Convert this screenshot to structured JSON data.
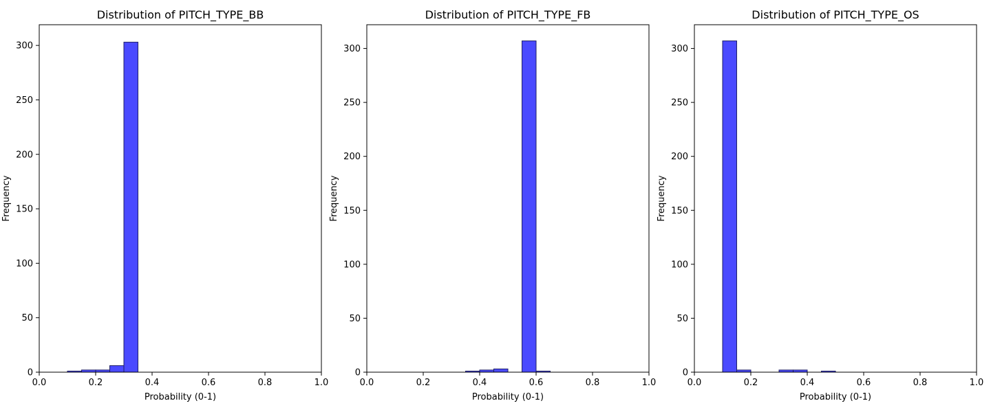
{
  "style": {
    "bar_fill": "#4a4aff",
    "bar_edge": "#1f1f66",
    "axis_color": "#000000"
  },
  "chart_data": [
    {
      "type": "bar",
      "title": "Distribution of PITCH_TYPE_BB",
      "xlabel": "Probability (0-1)",
      "ylabel": "Frequency",
      "xlim": [
        0,
        1
      ],
      "ylim": [
        0,
        319
      ],
      "xticks": [
        "0.0",
        "0.2",
        "0.4",
        "0.6",
        "0.8",
        "1.0"
      ],
      "yticks": [
        "0",
        "50",
        "100",
        "150",
        "200",
        "250",
        "300"
      ],
      "grid": false,
      "bins": [
        {
          "x0": 0.1,
          "x1": 0.15,
          "count": 1
        },
        {
          "x0": 0.15,
          "x1": 0.2,
          "count": 2
        },
        {
          "x0": 0.2,
          "x1": 0.25,
          "count": 2
        },
        {
          "x0": 0.25,
          "x1": 0.3,
          "count": 6
        },
        {
          "x0": 0.3,
          "x1": 0.35,
          "count": 303
        }
      ]
    },
    {
      "type": "bar",
      "title": "Distribution of PITCH_TYPE_FB",
      "xlabel": "Probability (0-1)",
      "ylabel": "Frequency",
      "xlim": [
        0,
        1
      ],
      "ylim": [
        0,
        322
      ],
      "xticks": [
        "0.0",
        "0.2",
        "0.4",
        "0.6",
        "0.8",
        "1.0"
      ],
      "yticks": [
        "0",
        "50",
        "100",
        "150",
        "200",
        "250",
        "300"
      ],
      "grid": false,
      "bins": [
        {
          "x0": 0.35,
          "x1": 0.4,
          "count": 1
        },
        {
          "x0": 0.4,
          "x1": 0.45,
          "count": 2
        },
        {
          "x0": 0.45,
          "x1": 0.5,
          "count": 3
        },
        {
          "x0": 0.55,
          "x1": 0.6,
          "count": 307
        },
        {
          "x0": 0.6,
          "x1": 0.65,
          "count": 1
        }
      ]
    },
    {
      "type": "bar",
      "title": "Distribution of PITCH_TYPE_OS",
      "xlabel": "Probability (0-1)",
      "ylabel": "Frequency",
      "xlim": [
        0,
        1
      ],
      "ylim": [
        0,
        322
      ],
      "xticks": [
        "0.0",
        "0.2",
        "0.4",
        "0.6",
        "0.8",
        "1.0"
      ],
      "yticks": [
        "0",
        "50",
        "100",
        "150",
        "200",
        "250",
        "300"
      ],
      "grid": false,
      "bins": [
        {
          "x0": 0.1,
          "x1": 0.15,
          "count": 307
        },
        {
          "x0": 0.15,
          "x1": 0.2,
          "count": 2
        },
        {
          "x0": 0.3,
          "x1": 0.35,
          "count": 2
        },
        {
          "x0": 0.35,
          "x1": 0.4,
          "count": 2
        },
        {
          "x0": 0.45,
          "x1": 0.5,
          "count": 1
        }
      ]
    }
  ]
}
